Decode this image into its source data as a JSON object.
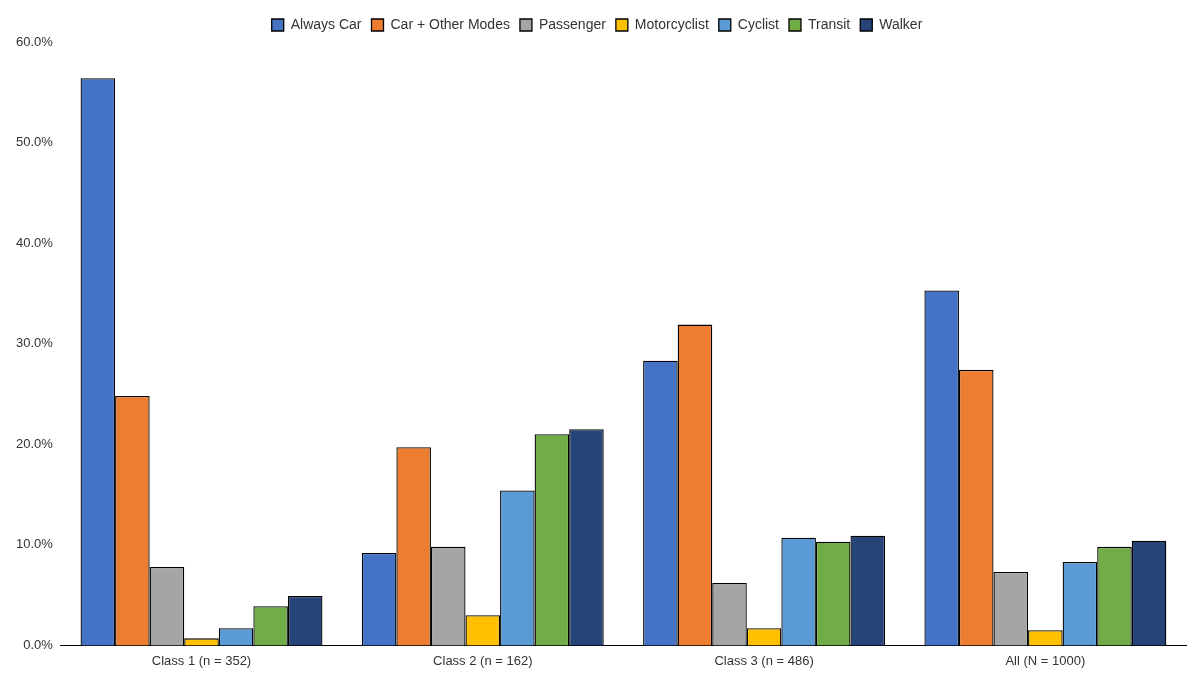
{
  "chart_data": {
    "type": "bar",
    "categories": [
      "Class 1 (n = 352)",
      "Class 2 (n = 162)",
      "Class 3 (n = 486)",
      "All (N = 1000)"
    ],
    "series": [
      {
        "name": "Always Car",
        "color": "#4472c4",
        "values": [
          56.4,
          9.2,
          28.3,
          35.3
        ]
      },
      {
        "name": "Car + Other Modes",
        "color": "#ed7d31",
        "values": [
          24.8,
          19.7,
          31.9,
          27.4
        ]
      },
      {
        "name": "Passenger",
        "color": "#a5a5a5",
        "values": [
          7.8,
          9.8,
          6.2,
          7.3
        ]
      },
      {
        "name": "Motorcyclist",
        "color": "#ffc000",
        "values": [
          0.7,
          3.0,
          1.7,
          1.5
        ]
      },
      {
        "name": "Cyclist",
        "color": "#5b9bd5",
        "values": [
          1.7,
          15.4,
          10.7,
          8.3
        ]
      },
      {
        "name": "Transit",
        "color": "#70ad47",
        "values": [
          3.9,
          21.0,
          10.3,
          9.8
        ]
      },
      {
        "name": "Walker",
        "color": "#264478",
        "values": [
          4.9,
          21.5,
          10.9,
          10.4
        ]
      }
    ],
    "ylim": [
      0,
      60
    ],
    "yticks": [
      {
        "value": 0,
        "label": "0.0%"
      },
      {
        "value": 10,
        "label": "10.0%"
      },
      {
        "value": 20,
        "label": "20.0%"
      },
      {
        "value": 30,
        "label": "30.0%"
      },
      {
        "value": 40,
        "label": "40.0%"
      },
      {
        "value": 50,
        "label": "50.0%"
      },
      {
        "value": 60,
        "label": "60.0%"
      }
    ],
    "grid": false,
    "legend": "top"
  }
}
